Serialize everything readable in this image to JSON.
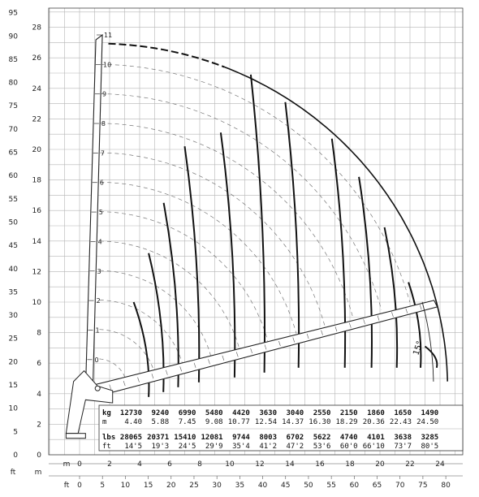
{
  "chart_data": {
    "type": "diagram",
    "y_axis_m": {
      "label": "m",
      "ticks": [
        "0",
        "2",
        "4",
        "6",
        "8",
        "10",
        "12",
        "14",
        "16",
        "18",
        "20",
        "22",
        "24",
        "26",
        "28"
      ]
    },
    "y_axis_ft": {
      "label": "ft",
      "ticks": [
        "0",
        "5",
        "10",
        "15",
        "20",
        "25",
        "30",
        "35",
        "40",
        "45",
        "50",
        "55",
        "60",
        "65",
        "70",
        "75",
        "80",
        "85",
        "90",
        "95"
      ]
    },
    "x_axis_m": {
      "label": "m",
      "ticks": [
        "0",
        "2",
        "4",
        "6",
        "8",
        "10",
        "12",
        "14",
        "16",
        "18",
        "20",
        "22",
        "24"
      ]
    },
    "x_axis_ft": {
      "label": "ft",
      "ticks": [
        "0",
        "5",
        "10",
        "15",
        "20",
        "25",
        "30",
        "35",
        "40",
        "45",
        "50",
        "55",
        "60",
        "65",
        "70",
        "75",
        "80"
      ]
    },
    "boom_positions": [
      "0",
      "1",
      "2",
      "3",
      "4",
      "5",
      "6",
      "7",
      "8",
      "9",
      "10",
      "11"
    ],
    "min_angle_label": "15°",
    "load_table": {
      "kg_label": "kg",
      "m_label": "m",
      "lbs_label": "lbs",
      "ft_label": "ft",
      "kg": [
        "12730",
        "9240",
        "6990",
        "5480",
        "4420",
        "3630",
        "3040",
        "2550",
        "2150",
        "1860",
        "1650",
        "1490"
      ],
      "m": [
        "4.40",
        "5.88",
        "7.45",
        "9.08",
        "10.77",
        "12.54",
        "14.37",
        "16.30",
        "18.29",
        "20.36",
        "22.43",
        "24.50"
      ],
      "lbs": [
        "28065",
        "20371",
        "15410",
        "12081",
        "9744",
        "8003",
        "6702",
        "5622",
        "4740",
        "4101",
        "3638",
        "3285"
      ],
      "ft": [
        "14'5",
        "19'3",
        "24'5",
        "29'9",
        "35'4",
        "41'2",
        "47'2",
        "53'6",
        "60'0",
        "66'10",
        "73'7",
        "80'5"
      ]
    }
  }
}
